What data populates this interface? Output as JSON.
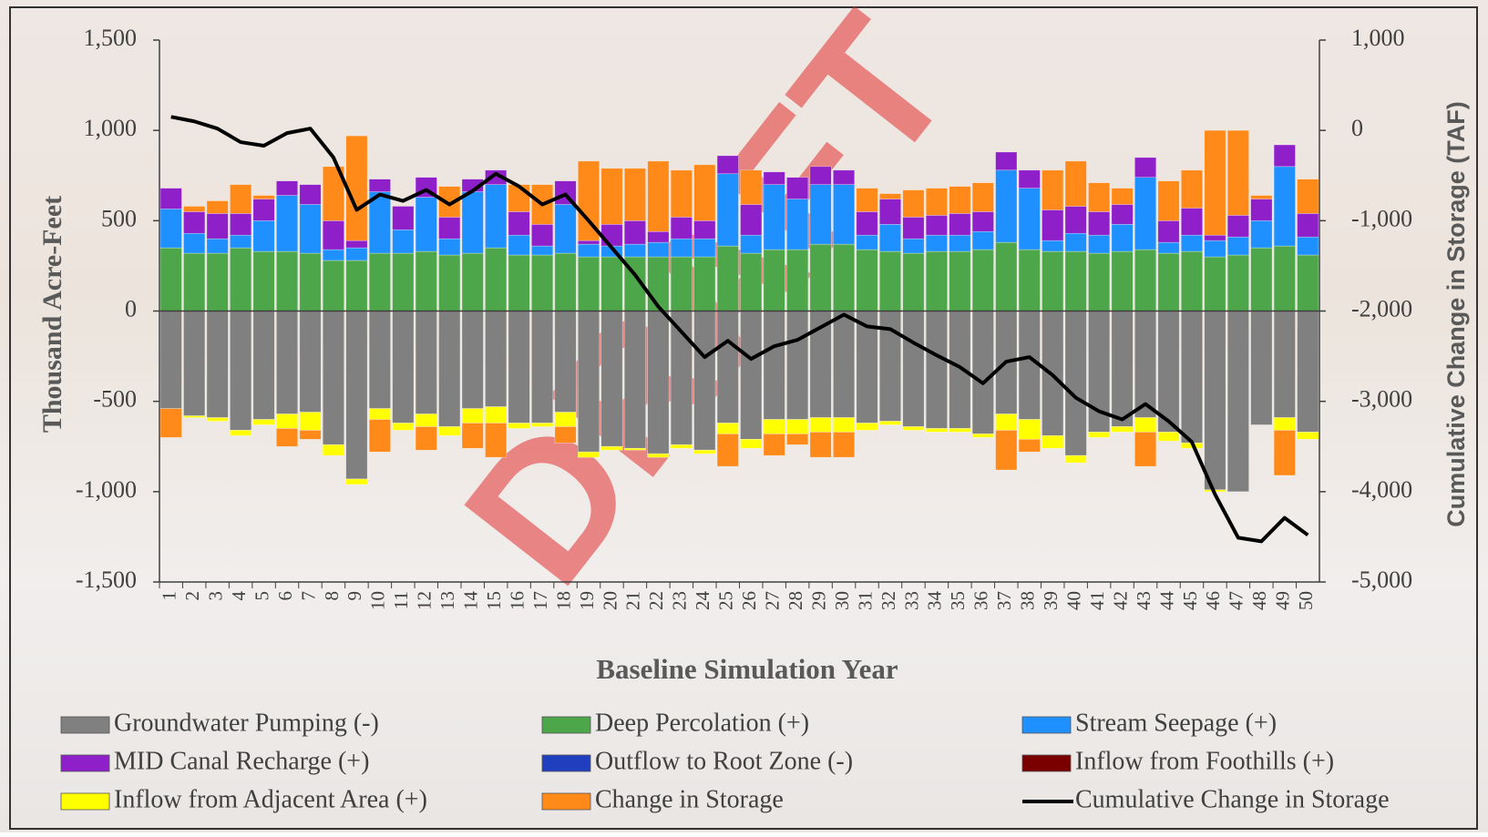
{
  "chart_data": {
    "type": "bar",
    "watermark": "DRAFT",
    "x_label": "Baseline Simulation Year",
    "y_label": "Thousand Acre-Feet",
    "y2_label": "Cumulative Change in Storage (TAF)",
    "categories": [
      "1",
      "2",
      "3",
      "4",
      "5",
      "6",
      "7",
      "8",
      "9",
      "10",
      "11",
      "12",
      "13",
      "14",
      "15",
      "16",
      "17",
      "18",
      "19",
      "20",
      "21",
      "22",
      "23",
      "24",
      "25",
      "26",
      "27",
      "28",
      "29",
      "30",
      "31",
      "32",
      "33",
      "34",
      "35",
      "36",
      "37",
      "38",
      "39",
      "40",
      "41",
      "42",
      "43",
      "44",
      "45",
      "46",
      "47",
      "48",
      "49",
      "50"
    ],
    "ylim": [
      -1500,
      1500
    ],
    "yticks": [
      {
        "value": -1500,
        "label": "-1,500"
      },
      {
        "value": -1000,
        "label": "-1,000"
      },
      -500,
      0,
      500,
      {
        "value": 1000,
        "label": "1,000"
      },
      {
        "value": 1500,
        "label": "1,500"
      }
    ],
    "y2lim": [
      -5000,
      1000
    ],
    "y2ticks": [
      {
        "value": -5000,
        "label": "-5,000"
      },
      {
        "value": -4000,
        "label": "-4,000"
      },
      {
        "value": -3000,
        "label": "-3,000"
      },
      {
        "value": -2000,
        "label": "-2,000"
      },
      {
        "value": -1000,
        "label": "-1,000"
      },
      0,
      {
        "value": 1000,
        "label": "1,000"
      }
    ],
    "stacked": true,
    "series": [
      {
        "name": "Groundwater Pumping (-)",
        "color": "#808080",
        "values": [
          -540,
          -580,
          -590,
          -660,
          -600,
          -570,
          -560,
          -740,
          -930,
          -540,
          -620,
          -570,
          -640,
          -540,
          -530,
          -620,
          -620,
          -560,
          -780,
          -750,
          -760,
          -790,
          -740,
          -770,
          -620,
          -710,
          -600,
          -600,
          -590,
          -590,
          -620,
          -610,
          -640,
          -650,
          -650,
          -680,
          -570,
          -600,
          -690,
          -800,
          -670,
          -640,
          -590,
          -670,
          -730,
          -990,
          -1000,
          -630,
          -590,
          -670
        ]
      },
      {
        "name": "Deep Percolation (+)",
        "color": "#4ea64a",
        "values": [
          350,
          320,
          320,
          350,
          330,
          330,
          320,
          280,
          280,
          320,
          320,
          330,
          310,
          320,
          350,
          310,
          310,
          320,
          300,
          300,
          300,
          300,
          300,
          300,
          360,
          320,
          340,
          340,
          370,
          370,
          340,
          330,
          320,
          330,
          330,
          340,
          380,
          340,
          330,
          330,
          320,
          330,
          340,
          320,
          330,
          300,
          310,
          350,
          360,
          310
        ]
      },
      {
        "name": "Stream Seepage (+)",
        "color": "#1e90ff",
        "values": [
          215,
          110,
          80,
          70,
          170,
          310,
          270,
          60,
          70,
          340,
          130,
          300,
          90,
          340,
          350,
          110,
          50,
          270,
          70,
          60,
          70,
          80,
          100,
          100,
          400,
          100,
          360,
          280,
          330,
          330,
          80,
          150,
          80,
          90,
          90,
          100,
          400,
          340,
          60,
          100,
          100,
          150,
          400,
          60,
          90,
          90,
          100,
          150,
          440,
          100
        ]
      },
      {
        "name": "MID Canal Recharge (+)",
        "color": "#8e1fc9",
        "values": [
          115,
          120,
          140,
          120,
          120,
          80,
          110,
          160,
          40,
          70,
          130,
          110,
          120,
          70,
          80,
          130,
          120,
          130,
          20,
          120,
          130,
          60,
          120,
          100,
          100,
          170,
          70,
          120,
          100,
          80,
          130,
          140,
          120,
          110,
          120,
          110,
          100,
          100,
          170,
          150,
          130,
          110,
          110,
          120,
          150,
          30,
          120,
          120,
          120,
          130
        ]
      },
      {
        "name": "Outflow to Root Zone (-)",
        "color": "#1f3fbf",
        "values": [
          0,
          0,
          0,
          0,
          0,
          0,
          0,
          0,
          0,
          0,
          0,
          0,
          0,
          0,
          0,
          0,
          0,
          0,
          0,
          0,
          0,
          0,
          0,
          0,
          0,
          0,
          0,
          0,
          0,
          0,
          0,
          0,
          0,
          0,
          0,
          0,
          0,
          0,
          0,
          0,
          0,
          0,
          0,
          0,
          0,
          0,
          0,
          0,
          0,
          0
        ]
      },
      {
        "name": "Inflow from Foothills (+)",
        "color": "#7a0000",
        "values": [
          0,
          0,
          0,
          0,
          0,
          0,
          0,
          0,
          0,
          0,
          0,
          0,
          0,
          0,
          0,
          0,
          0,
          0,
          0,
          0,
          0,
          0,
          0,
          0,
          0,
          0,
          0,
          0,
          0,
          0,
          0,
          0,
          0,
          0,
          0,
          0,
          0,
          0,
          0,
          0,
          0,
          0,
          0,
          0,
          0,
          0,
          0,
          0,
          0,
          0
        ]
      },
      {
        "name": "Inflow from Adjacent Area (+)",
        "color": "#ffff00",
        "values": [
          0,
          -10,
          -20,
          -30,
          -30,
          -80,
          -100,
          -60,
          -30,
          -60,
          -40,
          -70,
          -50,
          -80,
          -90,
          -30,
          -20,
          -80,
          -30,
          -20,
          -10,
          -20,
          -20,
          -20,
          -60,
          -50,
          -80,
          -80,
          -80,
          -80,
          -40,
          -20,
          -20,
          -20,
          -20,
          -20,
          -90,
          -110,
          -70,
          -40,
          -30,
          -30,
          -80,
          -50,
          -30,
          -10,
          0,
          0,
          -70,
          -40
        ]
      },
      {
        "name": "Change in Storage",
        "color": "#ff8a1a",
        "values": [
          -160,
          30,
          70,
          160,
          20,
          -100,
          -50,
          300,
          580,
          -180,
          0,
          -130,
          170,
          -140,
          -190,
          150,
          220,
          -90,
          440,
          310,
          290,
          390,
          260,
          310,
          -180,
          190,
          -120,
          -60,
          -140,
          -140,
          130,
          30,
          150,
          150,
          150,
          160,
          -220,
          -70,
          220,
          250,
          160,
          90,
          -190,
          220,
          210,
          580,
          470,
          20,
          -250,
          190
        ]
      },
      {
        "name": "Cumulative Change in Storage",
        "color": "#000000",
        "type": "line",
        "axis": "y2",
        "values": [
          150,
          100,
          20,
          -130,
          -170,
          -30,
          20,
          -300,
          -880,
          -710,
          -780,
          -660,
          -820,
          -670,
          -480,
          -620,
          -820,
          -710,
          -1000,
          -1300,
          -1600,
          -1950,
          -2230,
          -2510,
          -2330,
          -2530,
          -2390,
          -2320,
          -2180,
          -2040,
          -2170,
          -2200,
          -2350,
          -2490,
          -2620,
          -2800,
          -2560,
          -2510,
          -2710,
          -2960,
          -3110,
          -3200,
          -3030,
          -3220,
          -3450,
          -4030,
          -4510,
          -4550,
          -4290,
          -4480
        ]
      }
    ]
  }
}
